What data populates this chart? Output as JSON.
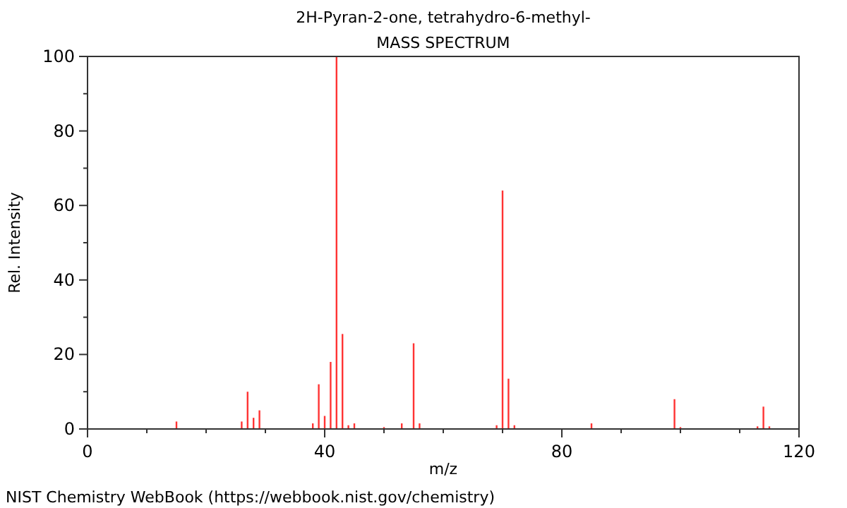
{
  "chart_data": {
    "type": "bar",
    "title": "2H-Pyran-2-one, tetrahydro-6-methyl-",
    "subtitle": "MASS SPECTRUM",
    "xlabel": "m/z",
    "ylabel": "Rel. Intensity",
    "x": [
      15,
      26,
      27,
      28,
      29,
      38,
      39,
      40,
      41,
      42,
      43,
      44,
      45,
      50,
      53,
      55,
      56,
      69,
      70,
      71,
      72,
      85,
      99,
      100,
      113,
      114,
      115
    ],
    "values": [
      2,
      2,
      10,
      3,
      5,
      1.5,
      12,
      3.5,
      18,
      100,
      25.5,
      1,
      1.5,
      0.5,
      1.5,
      23,
      1.5,
      1,
      64,
      13.5,
      1,
      1.5,
      8,
      0.5,
      0.7,
      6,
      0.7
    ],
    "color": "#ff3333",
    "xlim": [
      0,
      120
    ],
    "xticks": [
      0,
      {
        "value": 10,
        "label": null
      },
      {
        "value": 20,
        "label": null
      },
      {
        "value": 30,
        "label": null
      },
      40,
      {
        "value": 50,
        "label": null
      },
      {
        "value": 60,
        "label": null
      },
      {
        "value": 70,
        "label": null
      },
      80,
      {
        "value": 90,
        "label": null
      },
      {
        "value": 100,
        "label": null
      },
      {
        "value": 110,
        "label": null
      },
      120
    ],
    "ylim": [
      0,
      100
    ],
    "yticks": [
      0,
      {
        "value": 10,
        "label": null
      },
      20,
      {
        "value": 30,
        "label": null
      },
      40,
      {
        "value": 50,
        "label": null
      },
      60,
      {
        "value": 70,
        "label": null
      },
      80,
      {
        "value": 90,
        "label": null
      },
      100
    ],
    "grid": false,
    "annotations": [
      "NIST Chemistry WebBook (https://webbook.nist.gov/chemistry)"
    ]
  }
}
